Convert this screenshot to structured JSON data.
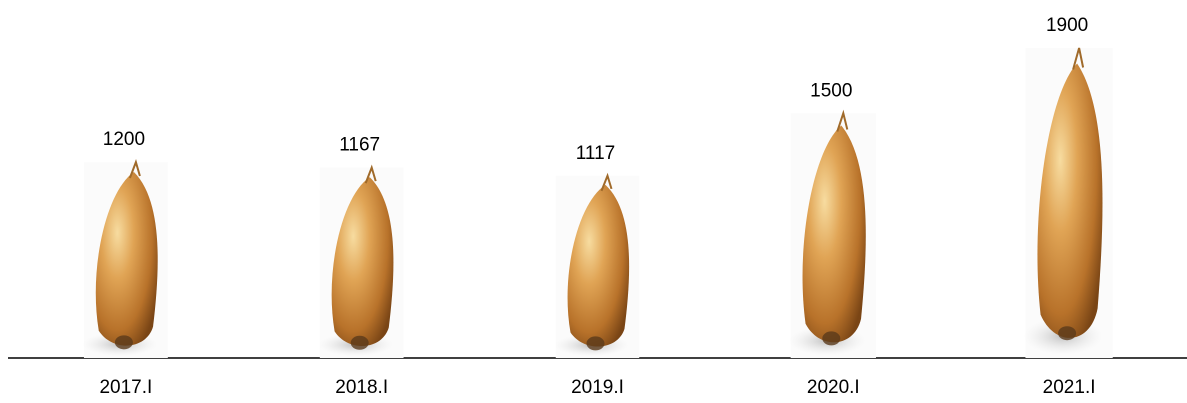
{
  "chart_data": {
    "type": "bar",
    "categories": [
      "2017.I",
      "2018.I",
      "2019.I",
      "2020.I",
      "2021.I"
    ],
    "values": [
      1200,
      1167,
      1117,
      1500,
      1900
    ],
    "color": "#c8862e"
  }
}
